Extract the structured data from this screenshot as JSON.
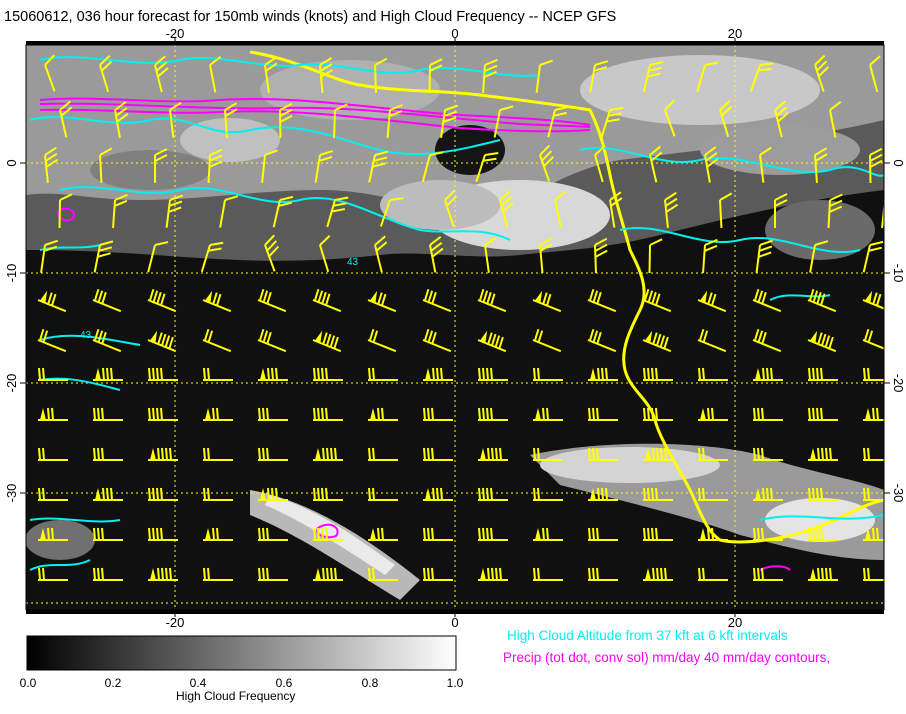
{
  "title": "15060612, 036 hour forecast for 150mb winds (knots) and High Cloud Frequency -- NCEP GFS",
  "map": {
    "x_ticks": [
      "-20",
      "0",
      "20"
    ],
    "y_ticks": [
      "0",
      "-10",
      "-20",
      "-30"
    ],
    "contour_label": "43",
    "colors": {
      "wind_barbs": "#ffff00",
      "high_cloud_altitude": "#00f0f0",
      "precip": "#ff00ff",
      "coastline": "#ffff00",
      "grid": "#ffff00"
    }
  },
  "notes": {
    "cyan": "High Cloud Altitude from 37 kft at 6 kft intervals",
    "magenta": "Precip (tot dot, conv sol) mm/day 40 mm/day contours,"
  },
  "colorbar": {
    "title": "High Cloud Frequency",
    "ticks": [
      "0.0",
      "0.2",
      "0.4",
      "0.6",
      "0.8",
      "1.0"
    ]
  }
}
